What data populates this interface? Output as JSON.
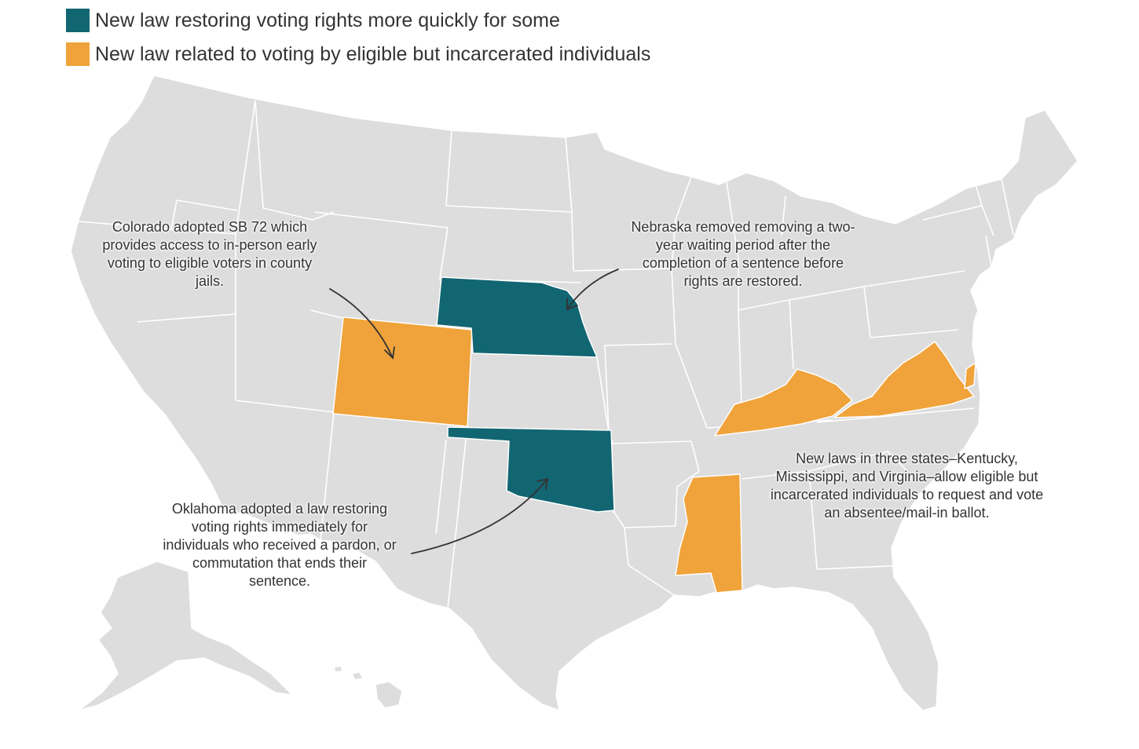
{
  "legend": {
    "items": [
      {
        "label": "New law restoring voting rights more quickly for some",
        "color": "#116672"
      },
      {
        "label": "New law related to voting by eligible but incarcerated individuals",
        "color": "#f0a33a"
      }
    ]
  },
  "map": {
    "base_color": "#dddddd",
    "border_color": "#ffffff",
    "highlighted_states": [
      {
        "state": "Nebraska",
        "category": "New law restoring voting rights more quickly for some"
      },
      {
        "state": "Oklahoma",
        "category": "New law restoring voting rights more quickly for some"
      },
      {
        "state": "Colorado",
        "category": "New law related to voting by eligible but incarcerated individuals"
      },
      {
        "state": "Kentucky",
        "category": "New law related to voting by eligible but incarcerated individuals"
      },
      {
        "state": "Virginia",
        "category": "New law related to voting by eligible but incarcerated individuals"
      },
      {
        "state": "Mississippi",
        "category": "New law related to voting by eligible but incarcerated individuals"
      }
    ]
  },
  "annotations": {
    "colorado": [
      "Colorado adopted SB 72 which",
      "provides access to in-person early",
      "voting to eligible voters in county",
      "jails."
    ],
    "nebraska": [
      "Nebraska removed removing a two-",
      "year waiting period after the",
      "completion of a sentence before",
      "rights are restored."
    ],
    "oklahoma": [
      "Oklahoma adopted a law restoring",
      "voting rights immediately for",
      "individuals who received a pardon, or",
      "commutation that ends their",
      "sentence."
    ],
    "three_states": [
      "New laws in three states–Kentucky,",
      "Mississippi, and Virginia–allow eligible but",
      "incarcerated individuals to request and vote",
      "an absentee/mail-in ballot."
    ]
  }
}
